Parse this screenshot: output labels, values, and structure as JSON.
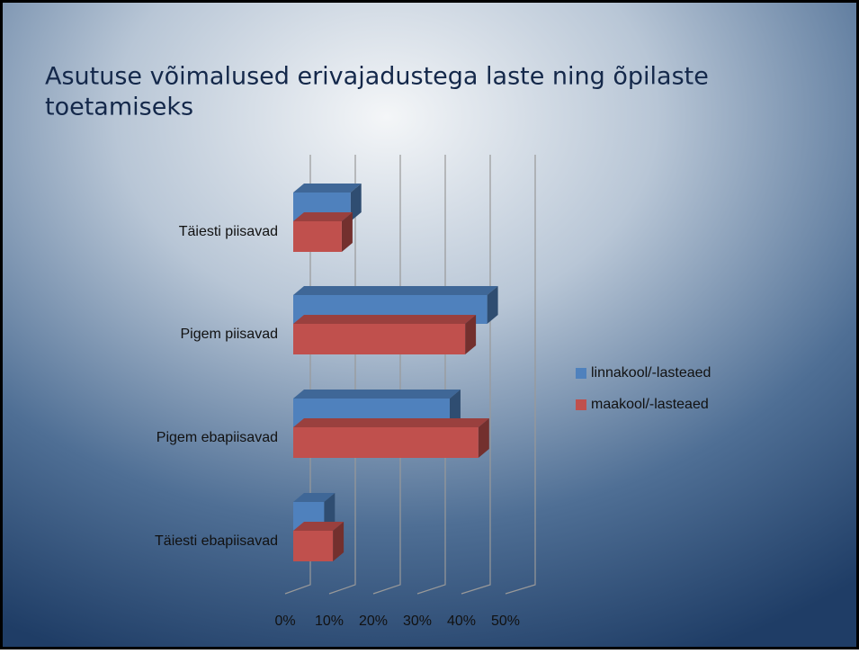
{
  "chart_data": {
    "type": "bar3d_horizontal",
    "title_lines": [
      "Asutuse võimalused erivajadustega laste ning õpilaste",
      "toetamiseks"
    ],
    "categories": [
      "Täiesti piisavad",
      "Pigem piisavad",
      "Pigem ebapiisavad",
      "Täiesti ebapiisavad"
    ],
    "series": [
      {
        "name": "linnakool/-lasteaed",
        "color": "#4f81bd",
        "values": [
          13,
          44,
          35.5,
          7
        ]
      },
      {
        "name": "maakool/-lasteaed",
        "color": "#c0504d",
        "values": [
          11,
          39,
          42,
          9
        ]
      }
    ],
    "xlim": [
      0,
      50
    ],
    "xticks": [
      {
        "value": 0,
        "label": "0%"
      },
      {
        "value": 10,
        "label": "10%"
      },
      {
        "value": 20,
        "label": "20%"
      },
      {
        "value": 30,
        "label": "30%"
      },
      {
        "value": 40,
        "label": "40%"
      },
      {
        "value": 50,
        "label": "50%"
      }
    ],
    "grid": true,
    "legend": "right"
  }
}
